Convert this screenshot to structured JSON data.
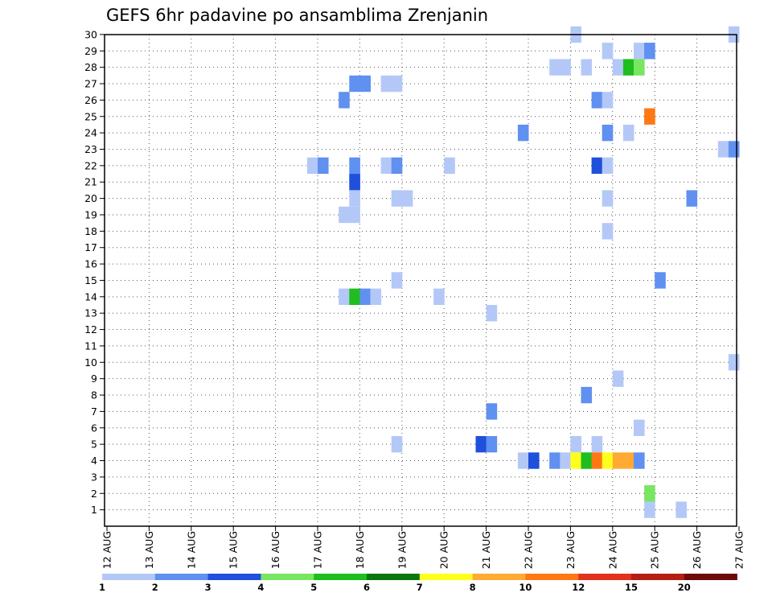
{
  "chart_data": {
    "type": "heatmap",
    "title": "GEFS 6hr padavine po ansamblima Zrenjanin",
    "xlabel": "",
    "ylabel": "",
    "x_tick_labels": [
      "12 AUG",
      "13 AUG",
      "14 AUG",
      "15 AUG",
      "16 AUG",
      "17 AUG",
      "18 AUG",
      "19 AUG",
      "20 AUG",
      "21 AUG",
      "22 AUG",
      "23 AUG",
      "24 AUG",
      "25 AUG",
      "26 AUG",
      "27 AUG"
    ],
    "y_tick_labels": [
      "1",
      "2",
      "3",
      "4",
      "5",
      "6",
      "7",
      "8",
      "9",
      "10",
      "11",
      "12",
      "13",
      "14",
      "15",
      "16",
      "17",
      "18",
      "19",
      "20",
      "21",
      "22",
      "23",
      "24",
      "25",
      "26",
      "27",
      "28",
      "29",
      "30"
    ],
    "x_range_days": [
      0,
      15
    ],
    "y_range": [
      0,
      30
    ],
    "grid": true,
    "legend": "bottom",
    "colorbar": {
      "tick_labels": [
        "1",
        "2",
        "3",
        "4",
        "5",
        "6",
        "7",
        "8",
        "10",
        "12",
        "15",
        "20"
      ],
      "colors": [
        "#b4c8f8",
        "#6090f0",
        "#1e50dc",
        "#78e660",
        "#1ebe1e",
        "#0a780a",
        "#ffff1e",
        "#ffaa32",
        "#ff7814",
        "#e1321e",
        "#b41e14",
        "#6e0a0a"
      ]
    },
    "cell_width_days": 0.25,
    "cells": [
      {
        "x": 11.0,
        "y": 30,
        "c": "#b4c8f8"
      },
      {
        "x": 14.75,
        "y": 30,
        "c": "#b4c8f8"
      },
      {
        "x": 11.75,
        "y": 29,
        "c": "#b4c8f8"
      },
      {
        "x": 12.5,
        "y": 29,
        "c": "#b4c8f8"
      },
      {
        "x": 12.75,
        "y": 29,
        "c": "#6090f0"
      },
      {
        "x": 10.5,
        "y": 28,
        "c": "#b4c8f8"
      },
      {
        "x": 10.75,
        "y": 28,
        "c": "#b4c8f8"
      },
      {
        "x": 11.25,
        "y": 28,
        "c": "#b4c8f8"
      },
      {
        "x": 12.0,
        "y": 28,
        "c": "#b4c8f8"
      },
      {
        "x": 12.25,
        "y": 28,
        "c": "#1ebe1e"
      },
      {
        "x": 12.5,
        "y": 28,
        "c": "#78e660"
      },
      {
        "x": 5.75,
        "y": 27,
        "c": "#6090f0"
      },
      {
        "x": 6.0,
        "y": 27,
        "c": "#6090f0"
      },
      {
        "x": 6.5,
        "y": 27,
        "c": "#b4c8f8"
      },
      {
        "x": 6.75,
        "y": 27,
        "c": "#b4c8f8"
      },
      {
        "x": 5.5,
        "y": 26,
        "c": "#6090f0"
      },
      {
        "x": 11.5,
        "y": 26,
        "c": "#6090f0"
      },
      {
        "x": 11.75,
        "y": 26,
        "c": "#b4c8f8"
      },
      {
        "x": 12.75,
        "y": 25,
        "c": "#ff7814"
      },
      {
        "x": 9.75,
        "y": 24,
        "c": "#6090f0"
      },
      {
        "x": 11.75,
        "y": 24,
        "c": "#6090f0"
      },
      {
        "x": 12.25,
        "y": 24,
        "c": "#b4c8f8"
      },
      {
        "x": 14.5,
        "y": 23,
        "c": "#b4c8f8"
      },
      {
        "x": 14.75,
        "y": 23,
        "c": "#6090f0"
      },
      {
        "x": 4.75,
        "y": 22,
        "c": "#b4c8f8"
      },
      {
        "x": 5.0,
        "y": 22,
        "c": "#6090f0"
      },
      {
        "x": 5.75,
        "y": 22,
        "c": "#6090f0"
      },
      {
        "x": 6.5,
        "y": 22,
        "c": "#b4c8f8"
      },
      {
        "x": 6.75,
        "y": 22,
        "c": "#6090f0"
      },
      {
        "x": 8.0,
        "y": 22,
        "c": "#b4c8f8"
      },
      {
        "x": 11.5,
        "y": 22,
        "c": "#1e50dc"
      },
      {
        "x": 11.75,
        "y": 22,
        "c": "#b4c8f8"
      },
      {
        "x": 5.75,
        "y": 21,
        "c": "#1e50dc"
      },
      {
        "x": 5.75,
        "y": 20,
        "c": "#b4c8f8"
      },
      {
        "x": 6.75,
        "y": 20,
        "c": "#b4c8f8"
      },
      {
        "x": 7.0,
        "y": 20,
        "c": "#b4c8f8"
      },
      {
        "x": 11.75,
        "y": 20,
        "c": "#b4c8f8"
      },
      {
        "x": 13.75,
        "y": 20,
        "c": "#6090f0"
      },
      {
        "x": 5.5,
        "y": 19,
        "c": "#b4c8f8"
      },
      {
        "x": 5.75,
        "y": 19,
        "c": "#b4c8f8"
      },
      {
        "x": 11.75,
        "y": 18,
        "c": "#b4c8f8"
      },
      {
        "x": 6.75,
        "y": 15,
        "c": "#b4c8f8"
      },
      {
        "x": 13.0,
        "y": 15,
        "c": "#6090f0"
      },
      {
        "x": 5.5,
        "y": 14,
        "c": "#b4c8f8"
      },
      {
        "x": 5.75,
        "y": 14,
        "c": "#1ebe1e"
      },
      {
        "x": 6.0,
        "y": 14,
        "c": "#6090f0"
      },
      {
        "x": 6.25,
        "y": 14,
        "c": "#b4c8f8"
      },
      {
        "x": 7.75,
        "y": 14,
        "c": "#b4c8f8"
      },
      {
        "x": 9.0,
        "y": 13,
        "c": "#b4c8f8"
      },
      {
        "x": 14.75,
        "y": 10,
        "c": "#b4c8f8"
      },
      {
        "x": 12.0,
        "y": 9,
        "c": "#b4c8f8"
      },
      {
        "x": 11.25,
        "y": 8,
        "c": "#6090f0"
      },
      {
        "x": 9.0,
        "y": 7,
        "c": "#6090f0"
      },
      {
        "x": 12.5,
        "y": 6,
        "c": "#b4c8f8"
      },
      {
        "x": 6.75,
        "y": 5,
        "c": "#b4c8f8"
      },
      {
        "x": 8.75,
        "y": 5,
        "c": "#1e50dc"
      },
      {
        "x": 9.0,
        "y": 5,
        "c": "#6090f0"
      },
      {
        "x": 11.0,
        "y": 5,
        "c": "#b4c8f8"
      },
      {
        "x": 11.5,
        "y": 5,
        "c": "#b4c8f8"
      },
      {
        "x": 9.75,
        "y": 4,
        "c": "#b4c8f8"
      },
      {
        "x": 10.0,
        "y": 4,
        "c": "#1e50dc"
      },
      {
        "x": 10.5,
        "y": 4,
        "c": "#6090f0"
      },
      {
        "x": 10.75,
        "y": 4,
        "c": "#b4c8f8"
      },
      {
        "x": 11.0,
        "y": 4,
        "c": "#ffff1e"
      },
      {
        "x": 11.25,
        "y": 4,
        "c": "#b4c8f8"
      },
      {
        "x": 11.25,
        "y": 4,
        "c": "#1ebe1e"
      },
      {
        "x": 11.5,
        "y": 4,
        "c": "#ff7814"
      },
      {
        "x": 11.75,
        "y": 4,
        "c": "#ffff1e"
      },
      {
        "x": 12.0,
        "y": 4,
        "c": "#ffaa32"
      },
      {
        "x": 12.25,
        "y": 4,
        "c": "#ffaa32"
      },
      {
        "x": 12.5,
        "y": 4,
        "c": "#6090f0"
      },
      {
        "x": 12.75,
        "y": 2,
        "c": "#78e660"
      },
      {
        "x": 12.75,
        "y": 1,
        "c": "#b4c8f8"
      },
      {
        "x": 13.5,
        "y": 1,
        "c": "#b4c8f8"
      }
    ]
  }
}
